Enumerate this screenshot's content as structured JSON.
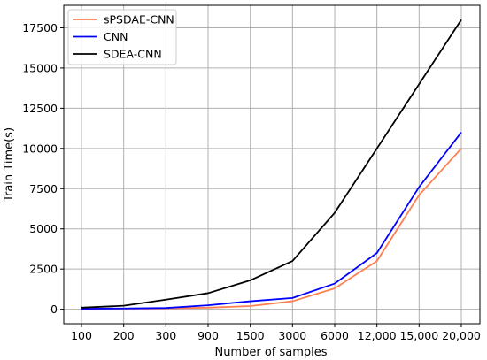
{
  "chart_data": {
    "type": "line",
    "xlabel": "Number of samples",
    "ylabel": "Train Time(s)",
    "categories": [
      "100",
      "200",
      "300",
      "900",
      "1500",
      "3000",
      "6000",
      "12,000",
      "15,000",
      "20,000"
    ],
    "yticks": [
      "0",
      "2500",
      "5000",
      "7500",
      "10000",
      "12500",
      "15000",
      "17500"
    ],
    "ytick_values": [
      0,
      2500,
      5000,
      7500,
      10000,
      12500,
      15000,
      17500
    ],
    "ylim": [
      -900,
      18900
    ],
    "grid": true,
    "legend_position": "upper-left",
    "series": [
      {
        "name": "sPSDAE-CNN",
        "color": "#ff7f50",
        "values": [
          20,
          40,
          60,
          100,
          200,
          500,
          1300,
          3000,
          7100,
          10000
        ]
      },
      {
        "name": "CNN",
        "color": "#0000ff",
        "values": [
          30,
          50,
          80,
          250,
          500,
          700,
          1600,
          3500,
          7600,
          11000
        ]
      },
      {
        "name": "SDEA-CNN",
        "color": "#000000",
        "values": [
          100,
          220,
          600,
          1000,
          1800,
          3000,
          6000,
          10000,
          14000,
          18000
        ]
      }
    ]
  }
}
